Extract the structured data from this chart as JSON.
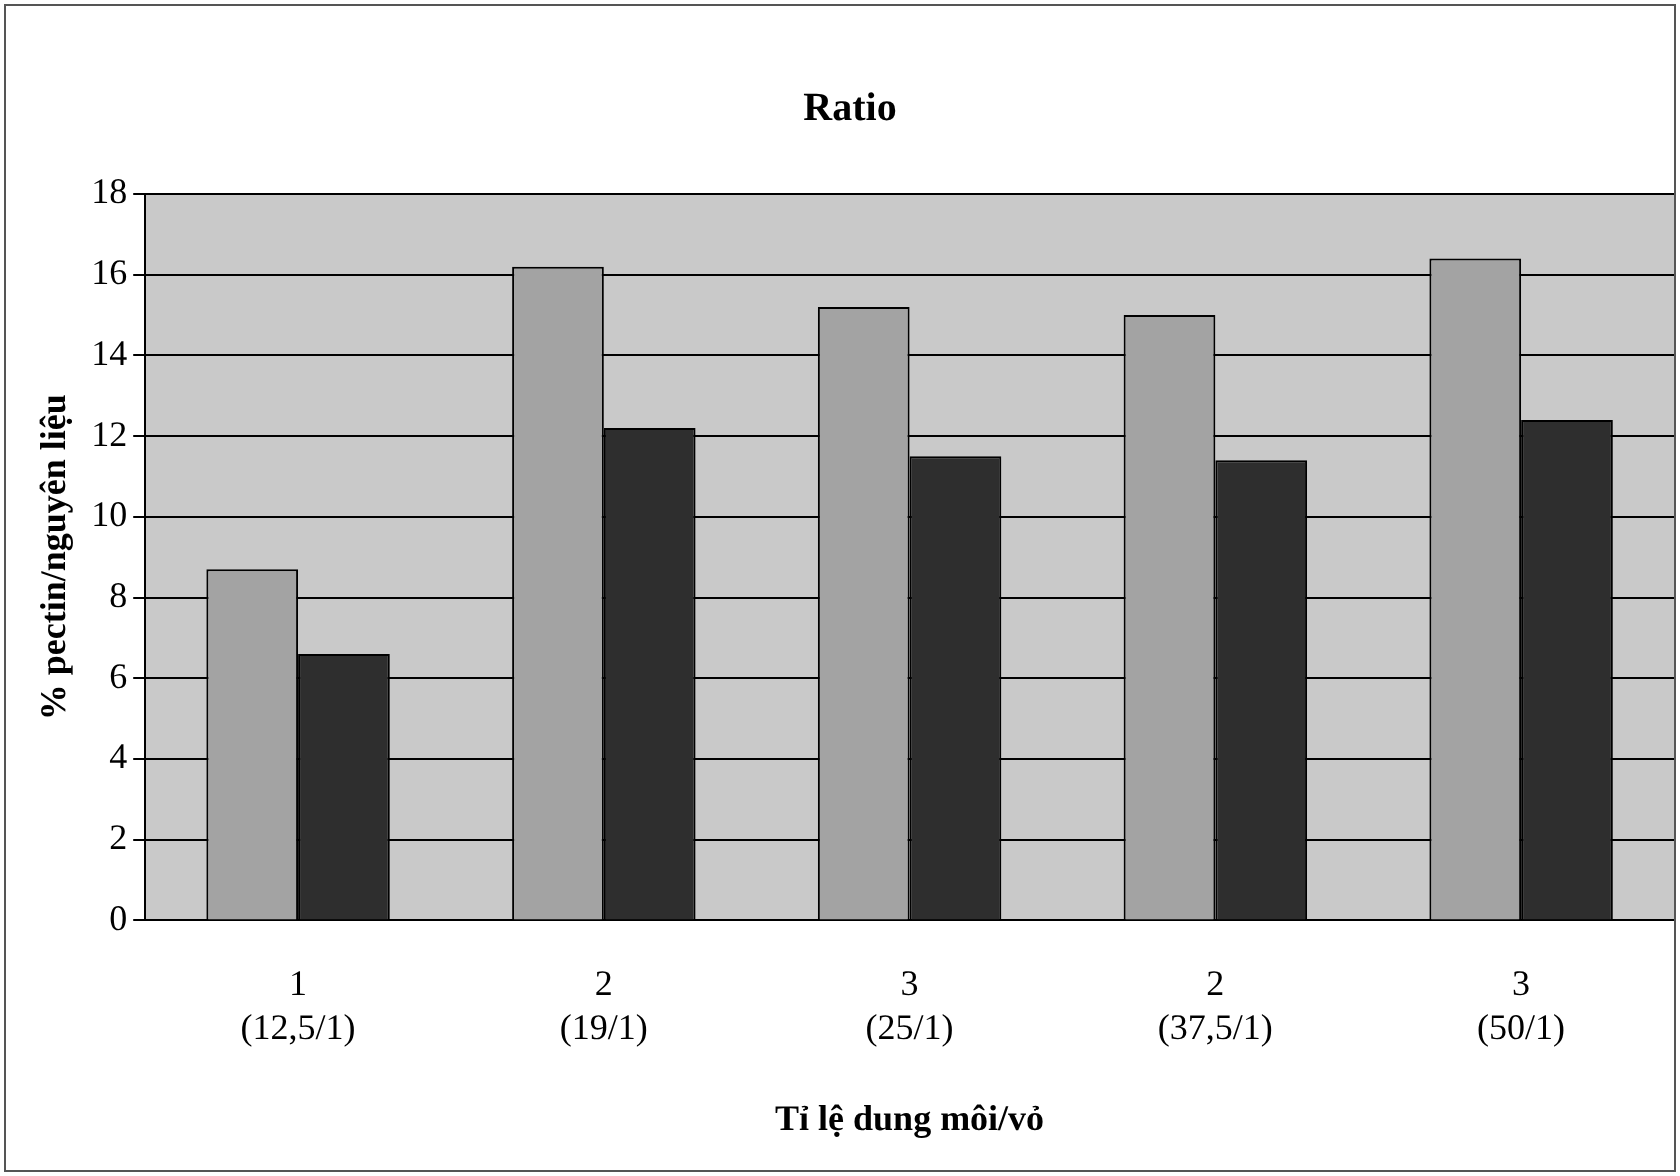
{
  "chart_data": {
    "type": "bar",
    "title": "Ratio",
    "xlabel": "Tỉ lệ dung môi/vỏ",
    "ylabel": "% pectin/nguyên liệu",
    "categories": [
      "1\n(12,5/1)",
      "2\n(19/1)",
      "3\n(25/1)",
      "2\n(37,5/1)",
      "3\n(50/1)"
    ],
    "series": [
      {
        "color": "#a3a3a3",
        "values": [
          8.7,
          16.2,
          15.2,
          15.0,
          16.4
        ]
      },
      {
        "color": "#2e2e2e",
        "values": [
          6.6,
          12.2,
          11.5,
          11.4,
          12.4
        ]
      }
    ],
    "ylim": [
      0,
      18
    ],
    "yticks": [
      0,
      2,
      4,
      6,
      8,
      10,
      12,
      14,
      16,
      18
    ],
    "grid": "y",
    "legend": false
  }
}
